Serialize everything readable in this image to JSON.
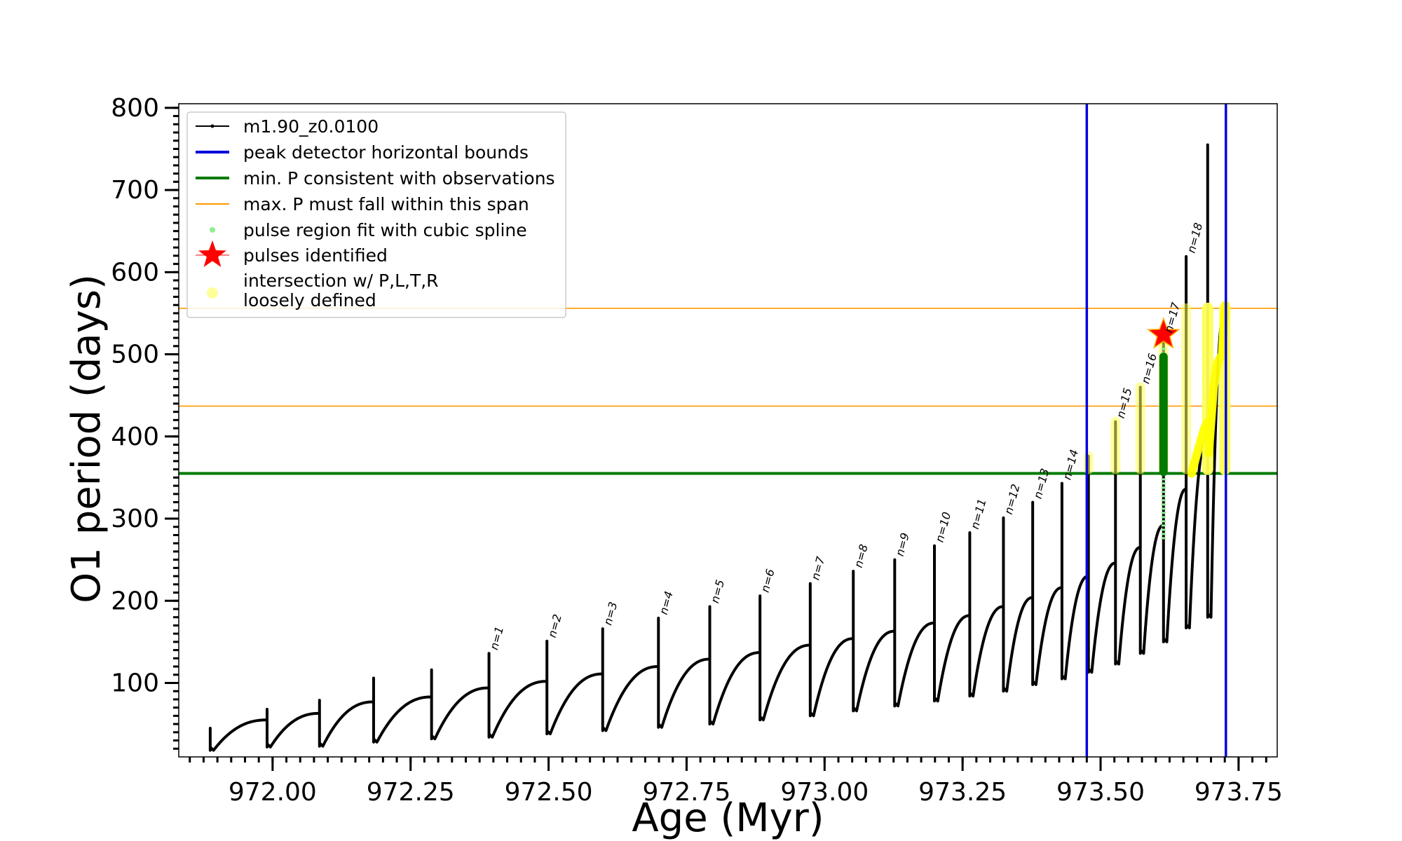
{
  "chart_data": {
    "type": "line",
    "xlabel": "Age (Myr)",
    "ylabel": "O1 period (days)",
    "xlim": [
      971.83,
      973.82
    ],
    "ylim": [
      10,
      805
    ],
    "x_ticks": [
      "972.00",
      "972.25",
      "972.50",
      "972.75",
      "973.00",
      "973.25",
      "973.50",
      "973.75"
    ],
    "x_tick_values": [
      972.0,
      972.25,
      972.5,
      972.75,
      973.0,
      973.25,
      973.5,
      973.75
    ],
    "y_ticks": [
      "100",
      "200",
      "300",
      "400",
      "500",
      "600",
      "700",
      "800"
    ],
    "y_tick_values": [
      100,
      200,
      300,
      400,
      500,
      600,
      700,
      800
    ],
    "legend": {
      "position": "upper-left",
      "entries": [
        {
          "label": "m1.90_z0.0100",
          "color": "#000000",
          "kind": "line-dot"
        },
        {
          "label": "peak detector horizontal bounds",
          "color": "#0000dd",
          "kind": "line"
        },
        {
          "label": "min. P consistent with observations",
          "color": "#007a00",
          "kind": "line"
        },
        {
          "label": "max. P must fall within this span",
          "color": "#ff9900",
          "kind": "line-thin"
        },
        {
          "label": "pulse region fit with cubic spline",
          "color": "#90ee90",
          "kind": "dot"
        },
        {
          "label": "pulses identified",
          "color": "#ff0000",
          "kind": "star"
        },
        {
          "label": "intersection w/ P,L,T,R",
          "label2": "loosely defined",
          "color": "#ffff99",
          "kind": "circle"
        }
      ]
    },
    "vertical_bounds": [
      973.475,
      973.727
    ],
    "min_period": 355,
    "max_period_span": [
      437,
      556
    ],
    "series": [
      {
        "name": "m1.90_z0.0100",
        "pulses": [
          {
            "x": 971.887,
            "low": 18,
            "high": 45,
            "end_value": 55
          },
          {
            "x": 971.99,
            "low": 22,
            "high": 68,
            "end_value": 63
          },
          {
            "x": 972.085,
            "low": 23,
            "high": 79,
            "end_value": 77
          },
          {
            "x": 972.183,
            "low": 28,
            "high": 106,
            "end_value": 83
          },
          {
            "x": 972.288,
            "low": 32,
            "high": 116,
            "end_value": 94
          },
          {
            "x": 972.392,
            "low": 34,
            "high": 136,
            "end_value": 102
          },
          {
            "x": 972.497,
            "low": 38,
            "high": 151,
            "end_value": 111
          },
          {
            "x": 972.598,
            "low": 42,
            "high": 166,
            "end_value": 120
          },
          {
            "x": 972.699,
            "low": 46,
            "high": 179,
            "end_value": 129
          },
          {
            "x": 972.792,
            "low": 50,
            "high": 193,
            "end_value": 137
          },
          {
            "x": 972.883,
            "low": 55,
            "high": 206,
            "end_value": 146
          },
          {
            "x": 972.974,
            "low": 60,
            "high": 221,
            "end_value": 154
          },
          {
            "x": 973.052,
            "low": 66,
            "high": 236,
            "end_value": 163
          },
          {
            "x": 973.127,
            "low": 72,
            "high": 250,
            "end_value": 173
          },
          {
            "x": 973.199,
            "low": 78,
            "high": 267,
            "end_value": 182
          },
          {
            "x": 973.263,
            "low": 84,
            "high": 283,
            "end_value": 193
          },
          {
            "x": 973.324,
            "low": 90,
            "high": 301,
            "end_value": 204
          },
          {
            "x": 973.377,
            "low": 98,
            "high": 320,
            "end_value": 216
          },
          {
            "x": 973.43,
            "low": 105,
            "high": 343,
            "end_value": 230
          },
          {
            "x": 973.478,
            "low": 113,
            "high": 376,
            "end_value": 246
          },
          {
            "x": 973.527,
            "low": 123,
            "high": 418,
            "end_value": 265
          },
          {
            "x": 973.572,
            "low": 136,
            "high": 460,
            "end_value": 292
          },
          {
            "x": 973.614,
            "low": 150,
            "high": 522,
            "end_value": 336
          },
          {
            "x": 973.655,
            "low": 167,
            "high": 619,
            "end_value": 400
          },
          {
            "x": 973.694,
            "low": 180,
            "high": 755,
            "end_value": 550
          }
        ]
      }
    ],
    "pulse_labels": [
      {
        "text": "n=1",
        "x": 972.392,
        "y": 136
      },
      {
        "text": "n=2",
        "x": 972.497,
        "y": 151
      },
      {
        "text": "n=3",
        "x": 972.598,
        "y": 166
      },
      {
        "text": "n=4",
        "x": 972.699,
        "y": 179
      },
      {
        "text": "n=5",
        "x": 972.792,
        "y": 193
      },
      {
        "text": "n=6",
        "x": 972.883,
        "y": 206
      },
      {
        "text": "n=7",
        "x": 972.974,
        "y": 221
      },
      {
        "text": "n=8",
        "x": 973.052,
        "y": 236
      },
      {
        "text": "n=9",
        "x": 973.127,
        "y": 250
      },
      {
        "text": "n=10",
        "x": 973.199,
        "y": 267
      },
      {
        "text": "n=11",
        "x": 973.263,
        "y": 283
      },
      {
        "text": "n=12",
        "x": 973.324,
        "y": 301
      },
      {
        "text": "n=13",
        "x": 973.377,
        "y": 320
      },
      {
        "text": "n=14",
        "x": 973.43,
        "y": 343
      },
      {
        "text": "n=15",
        "x": 973.527,
        "y": 418
      },
      {
        "text": "n=16",
        "x": 973.572,
        "y": 460
      },
      {
        "text": "n=17",
        "x": 973.614,
        "y": 522
      },
      {
        "text": "n=18",
        "x": 973.655,
        "y": 619
      }
    ],
    "pulse_identified": {
      "x": 973.614,
      "y": 524
    },
    "spline_fit_region": {
      "x": 973.614,
      "y_range": [
        275,
        510
      ]
    },
    "observation_consistent_region": {
      "x": 973.614,
      "y_range": [
        357,
        497
      ]
    },
    "loosely_defined_regions": [
      {
        "x": 973.478,
        "y_range": [
          360,
          376
        ]
      },
      {
        "x": 973.527,
        "y_range": [
          360,
          418
        ]
      },
      {
        "x": 973.572,
        "y_range": [
          360,
          460
        ]
      },
      {
        "x": 973.614,
        "y_range": [
          360,
          522
        ]
      },
      {
        "x": 973.655,
        "y_range": [
          360,
          556
        ]
      },
      {
        "x": 973.694,
        "y_range": [
          360,
          556
        ]
      },
      {
        "x": 973.725,
        "y_range": [
          360,
          556
        ]
      }
    ]
  }
}
